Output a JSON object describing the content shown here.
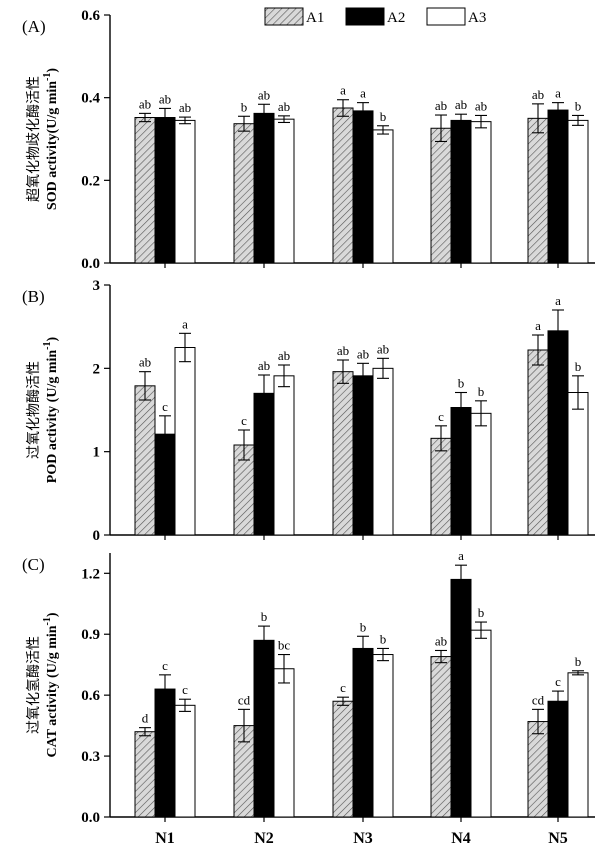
{
  "chart_data": {
    "type": "bar",
    "categories": [
      "N1",
      "N2",
      "N3",
      "N4",
      "N5"
    ],
    "legend": [
      {
        "name": "A1",
        "style": "hatched"
      },
      {
        "name": "A2",
        "style": "solid-black"
      },
      {
        "name": "A3",
        "style": "white"
      }
    ],
    "panels": [
      {
        "id": "A",
        "label": "(A)",
        "ylabel_cn": "超氧化物歧化酶活性",
        "ylabel_en": "SOD activity(U/g min",
        "ylabel_sup": "-1",
        "ylabel_end": ")",
        "ylim": [
          0,
          0.6
        ],
        "yticks": [
          0.0,
          0.2,
          0.4,
          0.6
        ],
        "ytick_labels": [
          "0.0",
          "0.2",
          "0.4",
          "0.6"
        ],
        "series": [
          {
            "name": "A1",
            "values": [
              0.352,
              0.337,
              0.375,
              0.326,
              0.35
            ],
            "errors": [
              0.01,
              0.018,
              0.02,
              0.032,
              0.035
            ],
            "letters": [
              "ab",
              "b",
              "a",
              "ab",
              "ab"
            ]
          },
          {
            "name": "A2",
            "values": [
              0.352,
              0.362,
              0.368,
              0.345,
              0.37
            ],
            "errors": [
              0.022,
              0.022,
              0.02,
              0.015,
              0.018
            ],
            "letters": [
              "ab",
              "ab",
              "a",
              "ab",
              "a"
            ]
          },
          {
            "name": "A3",
            "values": [
              0.345,
              0.348,
              0.322,
              0.342,
              0.345
            ],
            "errors": [
              0.008,
              0.008,
              0.01,
              0.015,
              0.012
            ],
            "letters": [
              "ab",
              "ab",
              "b",
              "ab",
              "b"
            ]
          }
        ]
      },
      {
        "id": "B",
        "label": "(B)",
        "ylabel_cn": "过氧化物酶活性",
        "ylabel_en": "POD activity (U/g min",
        "ylabel_sup": "-1",
        "ylabel_end": ")",
        "ylim": [
          0,
          3
        ],
        "yticks": [
          0,
          1,
          2,
          3
        ],
        "ytick_labels": [
          "0",
          "1",
          "2",
          "3"
        ],
        "series": [
          {
            "name": "A1",
            "values": [
              1.79,
              1.08,
              1.96,
              1.16,
              2.22
            ],
            "errors": [
              0.17,
              0.18,
              0.14,
              0.15,
              0.18
            ],
            "letters": [
              "ab",
              "c",
              "ab",
              "c",
              "a"
            ]
          },
          {
            "name": "A2",
            "values": [
              1.21,
              1.7,
              1.91,
              1.53,
              2.45
            ],
            "errors": [
              0.22,
              0.22,
              0.15,
              0.18,
              0.25
            ],
            "letters": [
              "c",
              "ab",
              "ab",
              "b",
              "a"
            ]
          },
          {
            "name": "A3",
            "values": [
              2.25,
              1.91,
              2.0,
              1.46,
              1.71
            ],
            "errors": [
              0.17,
              0.13,
              0.12,
              0.15,
              0.2
            ],
            "letters": [
              "a",
              "ab",
              "ab",
              "b",
              "b"
            ]
          }
        ]
      },
      {
        "id": "C",
        "label": "(C)",
        "ylabel_cn": "过氧化氢酶活性",
        "ylabel_en": "CAT activity (U/g min",
        "ylabel_sup": "-1",
        "ylabel_end": ")",
        "ylim": [
          0,
          1.3
        ],
        "yticks": [
          0.0,
          0.3,
          0.6,
          0.9,
          1.2
        ],
        "ytick_labels": [
          "0.0",
          "0.3",
          "0.6",
          "0.9",
          "1.2"
        ],
        "series": [
          {
            "name": "A1",
            "values": [
              0.42,
              0.45,
              0.57,
              0.79,
              0.47
            ],
            "errors": [
              0.02,
              0.08,
              0.02,
              0.03,
              0.06
            ],
            "letters": [
              "d",
              "cd",
              "c",
              "ab",
              "cd"
            ]
          },
          {
            "name": "A2",
            "values": [
              0.63,
              0.87,
              0.83,
              1.17,
              0.57
            ],
            "errors": [
              0.07,
              0.07,
              0.06,
              0.07,
              0.05
            ],
            "letters": [
              "c",
              "b",
              "b",
              "a",
              "c"
            ]
          },
          {
            "name": "A3",
            "values": [
              0.55,
              0.73,
              0.8,
              0.92,
              0.71
            ],
            "errors": [
              0.03,
              0.07,
              0.03,
              0.04,
              0.01
            ],
            "letters": [
              "c",
              "bc",
              "b",
              "b",
              "b"
            ]
          }
        ]
      }
    ]
  }
}
